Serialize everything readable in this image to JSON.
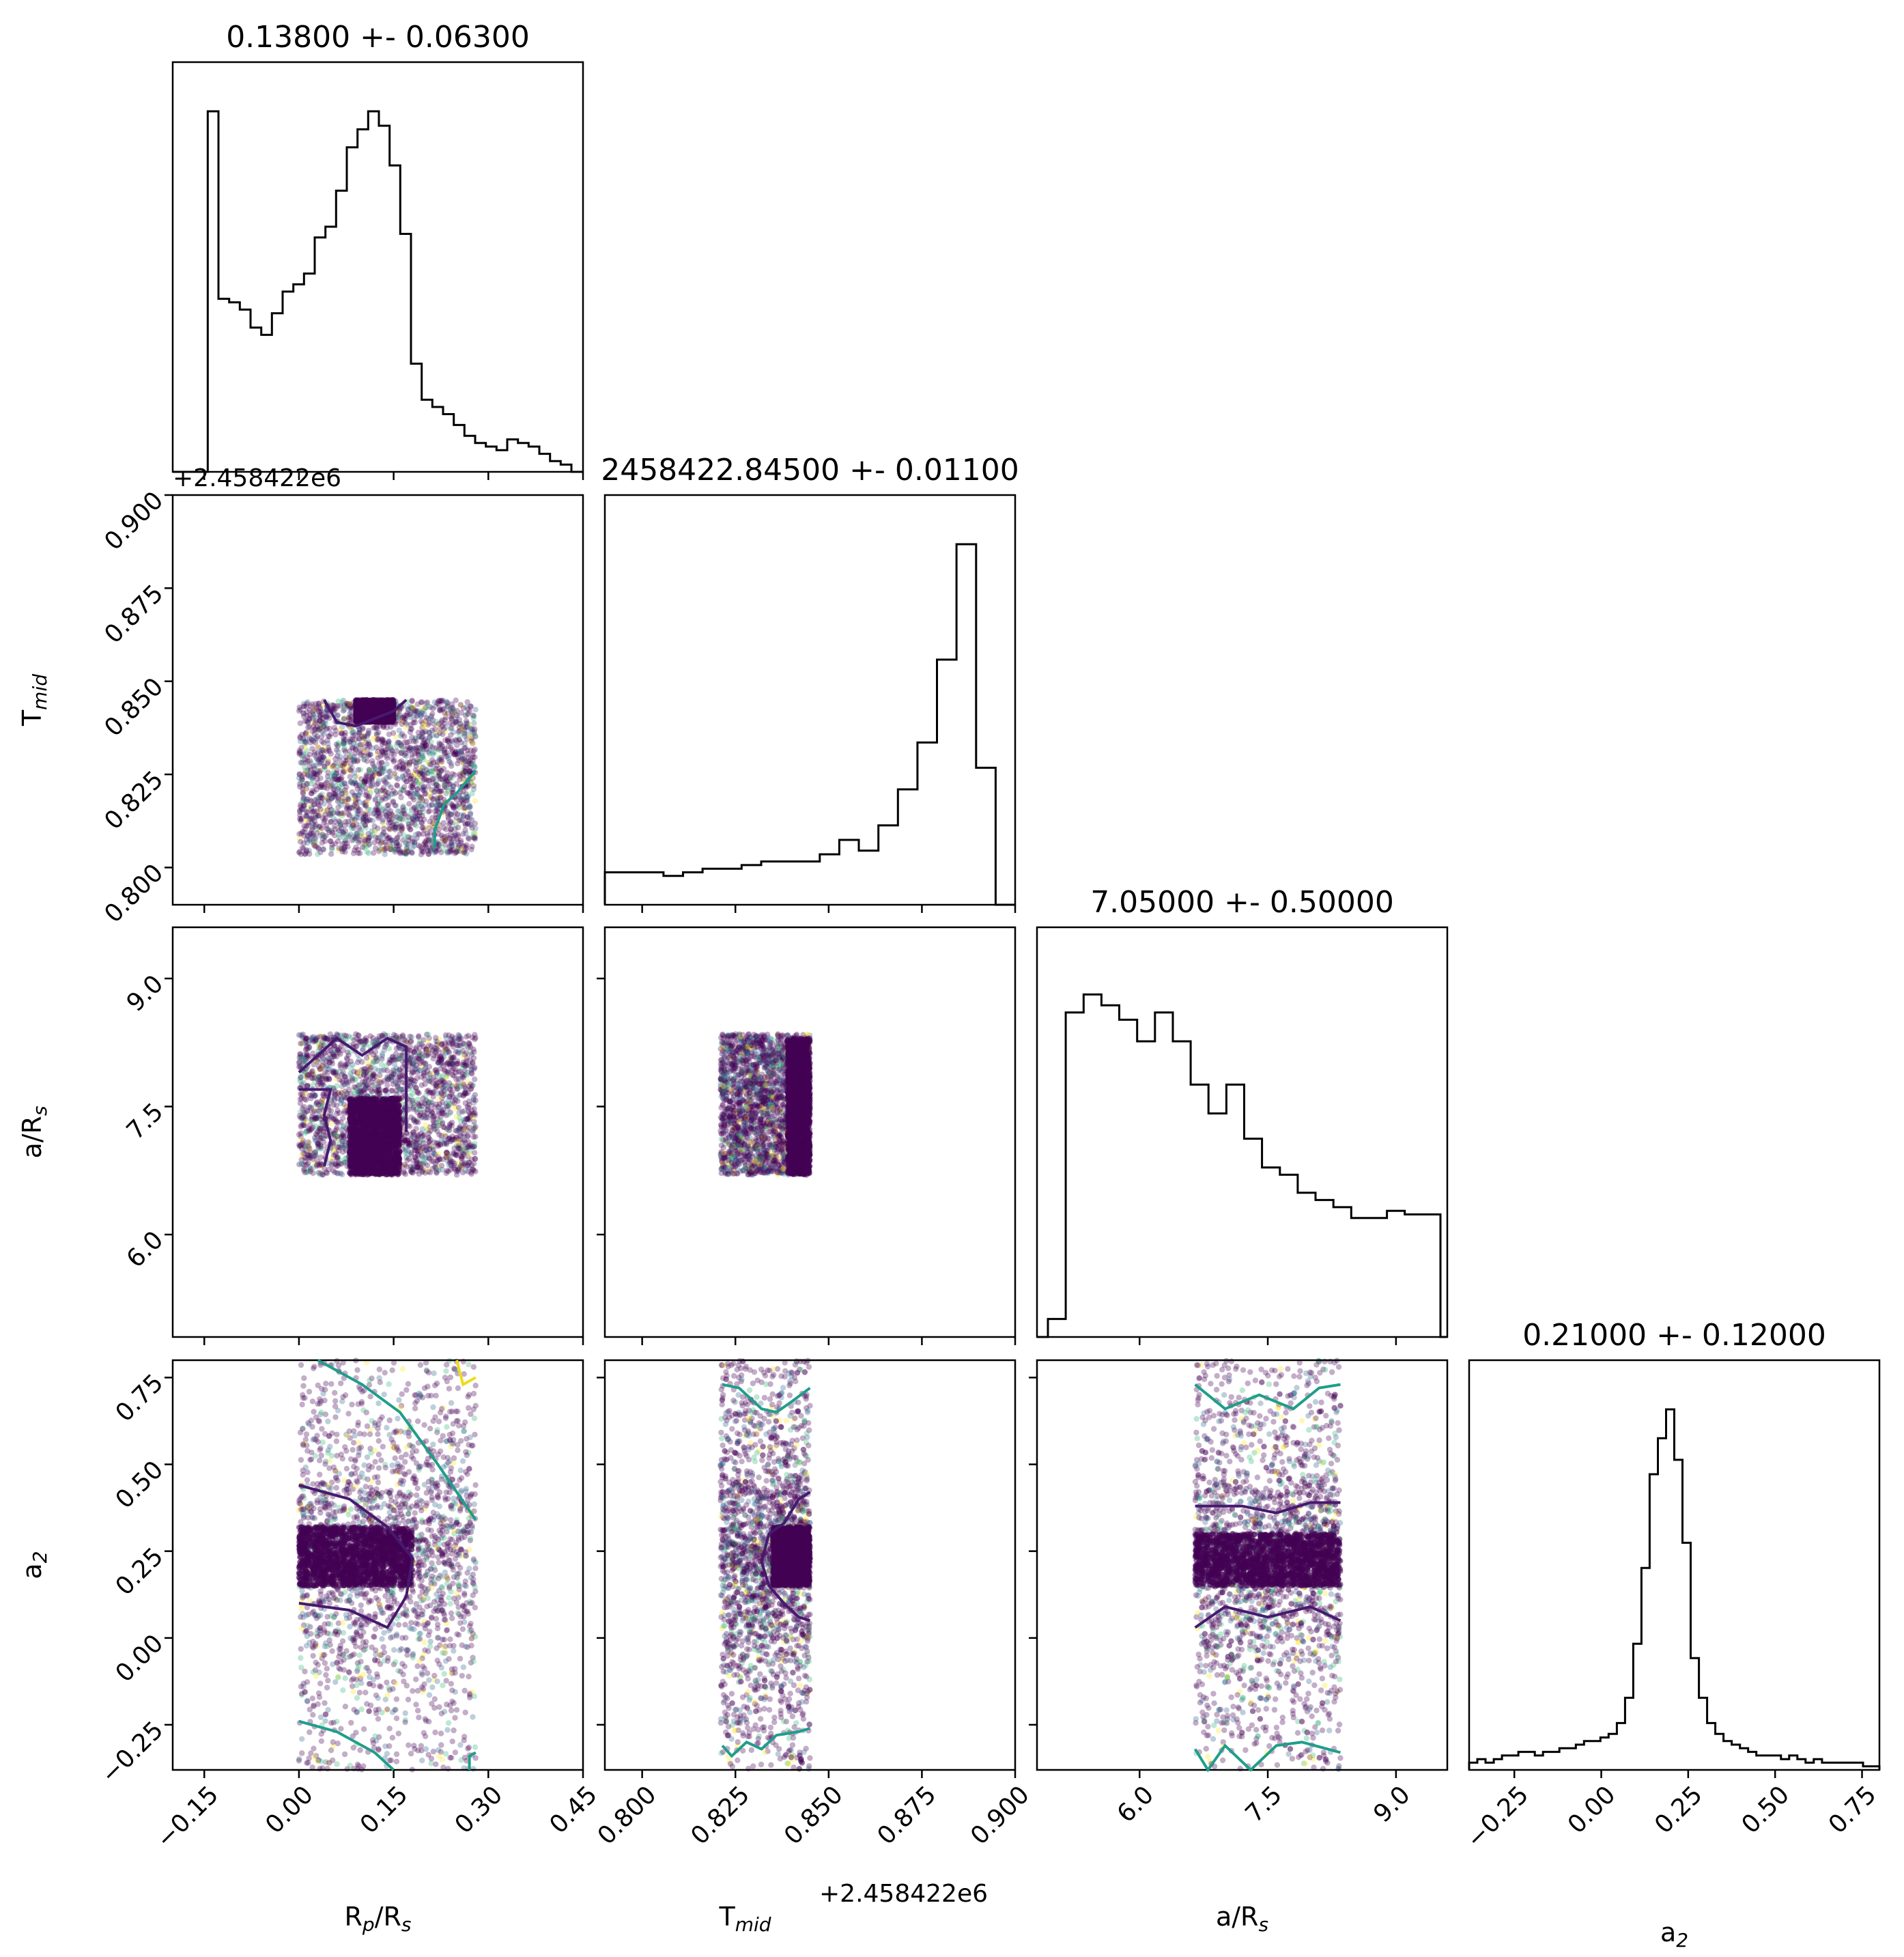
{
  "figure": {
    "type": "corner-plot",
    "parameters": [
      {
        "id": "rp",
        "label": "Rp/Rs"
      },
      {
        "id": "tmid",
        "label": "Tmid"
      },
      {
        "id": "ars",
        "label": "a/Rs"
      },
      {
        "id": "a2",
        "label": "a2"
      }
    ]
  },
  "chart_data": {
    "type": "corner",
    "titles": [
      "0.13800 +- 0.06300",
      "2458422.84500 +- 0.01100",
      "7.05000 +- 0.50000",
      "0.21000 +- 0.12000"
    ],
    "offset_label_top": "+2.458422e6",
    "offset_label_bottom": "+2.458422e6",
    "axes": {
      "rp": {
        "range": [
          -0.2,
          0.45
        ],
        "ticks": [
          -0.15,
          0.0,
          0.15,
          0.3,
          0.45
        ],
        "tick_labels": [
          "−0.15",
          "0.00",
          "0.15",
          "0.30",
          "0.45"
        ],
        "label_main": "R",
        "label_sub": "p",
        "label_mid": "/R",
        "label_sub2": "s"
      },
      "tmid": {
        "range": [
          0.79,
          0.9
        ],
        "ticks": [
          0.8,
          0.825,
          0.85,
          0.875,
          0.9
        ],
        "tick_labels": [
          "0.800",
          "0.825",
          "0.850",
          "0.875",
          "0.900"
        ],
        "label_main": "T",
        "label_sub": "mid"
      },
      "ars": {
        "range": [
          4.8,
          9.6
        ],
        "ticks": [
          6.0,
          7.5,
          9.0
        ],
        "tick_labels": [
          "6.0",
          "7.5",
          "9.0"
        ],
        "label_main": "a/R",
        "label_sub": "s"
      },
      "a2": {
        "range": [
          -0.38,
          0.8
        ],
        "ticks": [
          -0.25,
          0.0,
          0.25,
          0.5,
          0.75
        ],
        "tick_labels": [
          "−0.25",
          "0.00",
          "0.25",
          "0.50",
          "0.75"
        ],
        "label_main": "a",
        "label_sub": "2"
      }
    },
    "histograms": {
      "rp": {
        "edges_start": -0.2,
        "bin_width": 0.01,
        "pad_left": 20,
        "pad_right": 17,
        "counts": [
          0,
          0,
          1,
          0.48,
          0.47,
          0.45,
          0.4,
          0.38,
          0.44,
          0.5,
          0.52,
          0.55,
          0.65,
          0.68,
          0.78,
          0.9,
          0.95,
          1,
          0.96,
          0.85,
          0.66,
          0.3,
          0.2,
          0.18,
          0.16,
          0.13,
          0.1,
          0.08,
          0.07,
          0.06,
          0.09,
          0.08,
          0.07,
          0.05,
          0.03,
          0.02
        ]
      },
      "tmid": {
        "edges_start": 0.8,
        "bin_width": 0.002,
        "pad_left": 0,
        "pad_right": 0,
        "counts": [
          0.09,
          0.09,
          0.09,
          0.08,
          0.09,
          0.1,
          0.1,
          0.11,
          0.12,
          0.12,
          0.12,
          0.14,
          0.18,
          0.15,
          0.22,
          0.32,
          0.45,
          0.68,
          1,
          0.38,
          0
        ]
      },
      "ars": {
        "edges_start": 6.5,
        "bin_width": 0.102,
        "pad_left": 16,
        "pad_right": 10,
        "counts": [
          0.05,
          0.9,
          0.95,
          0.92,
          0.88,
          0.82,
          0.9,
          0.82,
          0.7,
          0.62,
          0.7,
          0.55,
          0.47,
          0.45,
          0.4,
          0.38,
          0.36,
          0.33,
          0.33,
          0.35,
          0.34,
          0.34
        ]
      },
      "a2": {
        "edges_start": -0.38,
        "bin_width": 0.0236,
        "pad_left": 0,
        "pad_right": 0,
        "counts": [
          0.02,
          0.03,
          0.02,
          0.03,
          0.04,
          0.04,
          0.05,
          0.05,
          0.04,
          0.05,
          0.05,
          0.06,
          0.06,
          0.07,
          0.08,
          0.08,
          0.09,
          0.1,
          0.13,
          0.2,
          0.35,
          0.56,
          0.82,
          0.92,
          1,
          0.86,
          0.63,
          0.31,
          0.2,
          0.13,
          0.1,
          0.08,
          0.07,
          0.06,
          0.05,
          0.04,
          0.04,
          0.04,
          0.03,
          0.04,
          0.03,
          0.02,
          0.03,
          0.02,
          0.02,
          0.02,
          0.02,
          0.02,
          0.01,
          0.01
        ]
      }
    },
    "scatter_panels": [
      {
        "x": "rp",
        "y": "tmid",
        "x_range": [
          0.0,
          0.28
        ],
        "y_range": [
          0.8035,
          0.845
        ],
        "dense_x": [
          0.09,
          0.15
        ],
        "dense_y": [
          0.839,
          0.845
        ]
      },
      {
        "x": "rp",
        "y": "ars",
        "x_range": [
          0.0,
          0.28
        ],
        "y_range": [
          6.7,
          8.35
        ],
        "dense_x": [
          0.08,
          0.16
        ],
        "dense_y": [
          6.7,
          7.6
        ]
      },
      {
        "x": "tmid",
        "y": "ars",
        "x_range": [
          0.821,
          0.845
        ],
        "y_range": [
          6.7,
          8.35
        ],
        "dense_x": [
          0.839,
          0.845
        ],
        "dense_y": [
          6.7,
          8.3
        ]
      },
      {
        "x": "rp",
        "y": "a2",
        "x_range": [
          0.0,
          0.28
        ],
        "y_range": [
          -0.38,
          0.8
        ],
        "dense_x": [
          0.0,
          0.18
        ],
        "dense_y": [
          0.15,
          0.32
        ]
      },
      {
        "x": "tmid",
        "y": "a2",
        "x_range": [
          0.821,
          0.845
        ],
        "y_range": [
          -0.38,
          0.8
        ],
        "dense_x": [
          0.835,
          0.845
        ],
        "dense_y": [
          0.15,
          0.32
        ]
      },
      {
        "x": "ars",
        "y": "a2",
        "x_range": [
          6.65,
          8.35
        ],
        "y_range": [
          -0.38,
          0.8
        ],
        "dense_x": [
          6.65,
          8.35
        ],
        "dense_y": [
          0.15,
          0.3
        ]
      }
    ],
    "colors": {
      "hist": "#000000",
      "scatter_dark": "#440154",
      "scatter_mid": "#31688e",
      "scatter_teal": "#35b779",
      "scatter_yellow": "#fde725",
      "contour_dark": "#46196e",
      "contour_teal": "#1f9e89",
      "contour_yellow": "#eddc1c"
    },
    "grid": false,
    "legend": "none"
  }
}
